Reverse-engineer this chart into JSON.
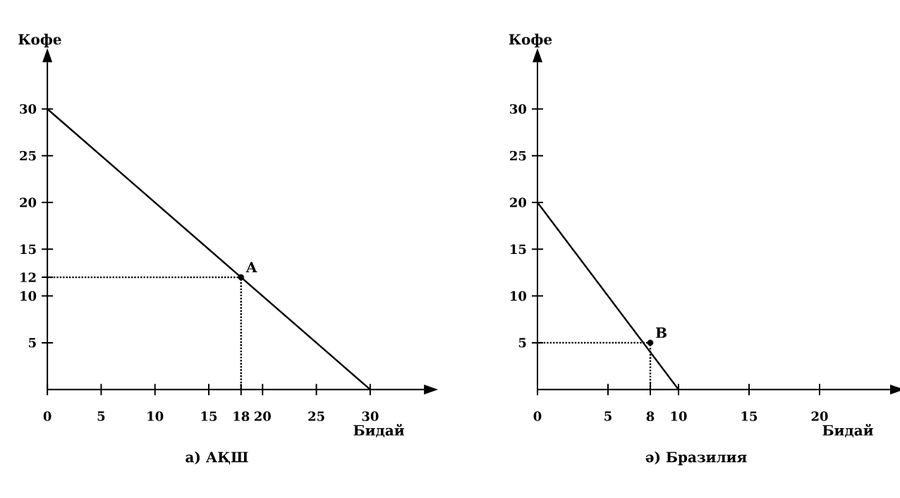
{
  "chart_data": [
    {
      "type": "line",
      "title": "а) АҚШ",
      "xlabel": "Бидай",
      "ylabel": "Кофе",
      "xlim": [
        0,
        35
      ],
      "ylim": [
        0,
        35
      ],
      "xticks": [
        0,
        5,
        10,
        15,
        18,
        20,
        25,
        30
      ],
      "yticks": [
        5,
        10,
        12,
        15,
        20,
        25,
        30
      ],
      "series": [
        {
          "x": [
            0,
            30
          ],
          "values": [
            30,
            0
          ],
          "color": "#000000",
          "line_style": "solid",
          "marker": "none"
        },
        {
          "x": [
            0,
            18,
            18
          ],
          "values": [
            12,
            12,
            0
          ],
          "color": "#000000",
          "line_style": "dotted",
          "marker": "none"
        },
        {
          "type": "scatter",
          "x": [
            18
          ],
          "values": [
            12
          ],
          "color": "#000000",
          "marker": "circle"
        }
      ],
      "annotations": [
        {
          "text": "A",
          "x": 18,
          "y": 12
        }
      ]
    },
    {
      "type": "line",
      "title": "ә) Бразилия",
      "xlabel": "Бидай",
      "ylabel": "Кофе",
      "xlim": [
        0,
        25
      ],
      "ylim": [
        0,
        35
      ],
      "xticks": [
        0,
        5,
        8,
        10,
        15,
        20
      ],
      "yticks": [
        5,
        10,
        15,
        20,
        25,
        30
      ],
      "series": [
        {
          "x": [
            0,
            10
          ],
          "values": [
            20,
            0
          ],
          "color": "#000000",
          "line_style": "solid",
          "marker": "none"
        },
        {
          "x": [
            0,
            8,
            8
          ],
          "values": [
            5,
            5,
            0
          ],
          "color": "#000000",
          "line_style": "dotted",
          "marker": "none"
        },
        {
          "type": "scatter",
          "x": [
            8
          ],
          "values": [
            5
          ],
          "color": "#000000",
          "marker": "circle"
        }
      ],
      "annotations": [
        {
          "text": "B",
          "x": 8,
          "y": 5
        }
      ]
    }
  ]
}
